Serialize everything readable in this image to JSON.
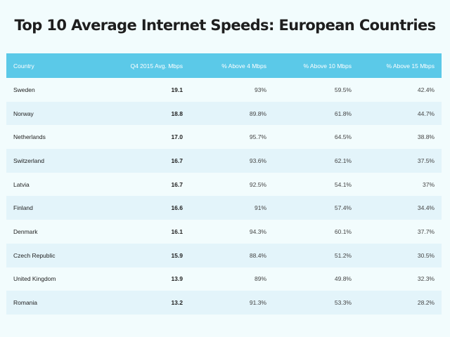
{
  "chart_data": {
    "type": "table",
    "title": "Top 10 Average Internet Speeds: European Countries",
    "columns": [
      "Country",
      "Q4 2015 Avg. Mbps",
      "% Above 4 Mbps",
      "% Above 10 Mbps",
      "% Above 15 Mbps"
    ],
    "rows": [
      [
        "Sweden",
        "19.1",
        "93%",
        "59.5%",
        "42.4%"
      ],
      [
        "Norway",
        "18.8",
        "89.8%",
        "61.8%",
        "44.7%"
      ],
      [
        "Netherlands",
        "17.0",
        "95.7%",
        "64.5%",
        "38.8%"
      ],
      [
        "Switzerland",
        "16.7",
        "93.6%",
        "62.1%",
        "37.5%"
      ],
      [
        "Latvia",
        "16.7",
        "92.5%",
        "54.1%",
        "37%"
      ],
      [
        "Finland",
        "16.6",
        "91%",
        "57.4%",
        "34.4%"
      ],
      [
        "Denmark",
        "16.1",
        "94.3%",
        "60.1%",
        "37.7%"
      ],
      [
        "Czech Republic",
        "15.9",
        "88.4%",
        "51.2%",
        "30.5%"
      ],
      [
        "United Kingdom",
        "13.9",
        "89%",
        "49.8%",
        "32.3%"
      ],
      [
        "Romania",
        "13.2",
        "91.3%",
        "53.3%",
        "28.2%"
      ]
    ]
  },
  "colors": {
    "header_bg": "#5bc9e8",
    "row_alt_bg": "#e3f4fa",
    "page_bg": "#f2fcfd"
  }
}
